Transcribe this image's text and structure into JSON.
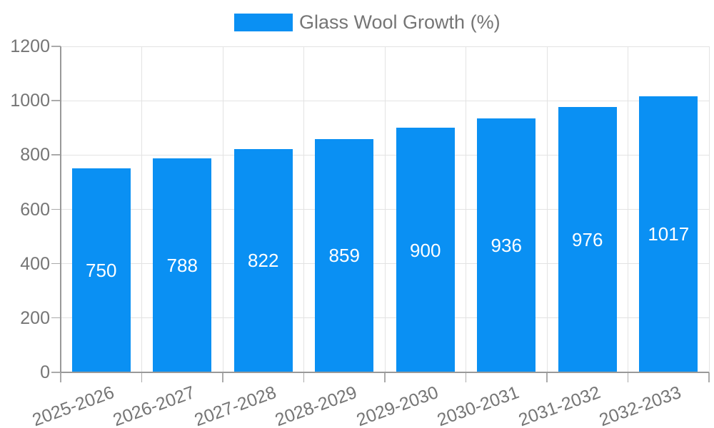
{
  "chart_data": {
    "type": "bar",
    "title": "Glass Wool Growth (%)",
    "legend": {
      "label": "Glass Wool Growth (%)",
      "position": "top"
    },
    "categories": [
      "2025-2026",
      "2026-2027",
      "2027-2028",
      "2028-2029",
      "2029-2030",
      "2030-2031",
      "2031-2032",
      "2032-2033"
    ],
    "values": [
      750,
      788,
      822,
      859,
      900,
      936,
      976,
      1017
    ],
    "xlabel": "",
    "ylabel": "",
    "ylim": [
      0,
      1200
    ],
    "yticks": [
      0,
      200,
      400,
      600,
      800,
      1000,
      1200
    ],
    "grid": true,
    "colors": {
      "bar": "#0a90f3",
      "bar_label_text": "#ffffff",
      "axis_text": "#757575",
      "grid_line": "#e3e3e3",
      "axis_line": "#999999",
      "tick_line": "#aaaaaa"
    }
  }
}
